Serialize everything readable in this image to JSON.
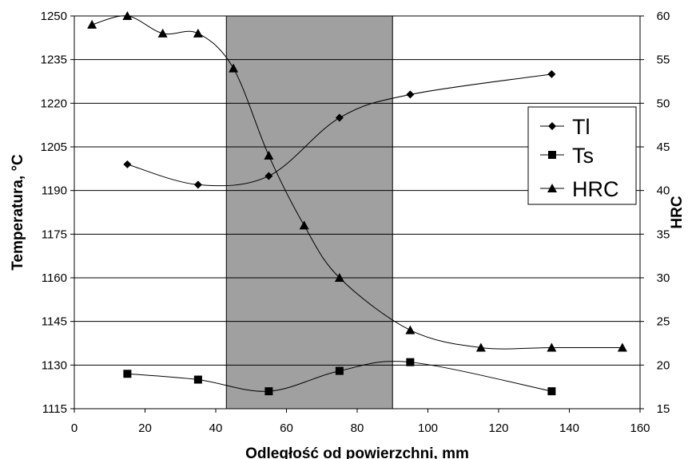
{
  "chart_data": {
    "type": "line",
    "title": "",
    "xlabel": "Odległość od powierzchni, mm",
    "ylabel": "Temperatura, °C",
    "y2label": "HRC",
    "xlim": [
      0,
      160
    ],
    "ylim": [
      1115,
      1250
    ],
    "y2lim": [
      15,
      60
    ],
    "x_ticks": [
      "0",
      "20",
      "40",
      "60",
      "80",
      "100",
      "120",
      "140",
      "160"
    ],
    "y_ticks": [
      "1115",
      "1130",
      "1145",
      "1160",
      "1175",
      "1190",
      "1205",
      "1220",
      "1235",
      "1250"
    ],
    "y2_ticks": [
      "15",
      "20",
      "25",
      "30",
      "35",
      "40",
      "45",
      "50",
      "55",
      "60"
    ],
    "shaded_region": {
      "x_from": 43,
      "x_to": 90,
      "color": "#a0a0a0"
    },
    "grid": "horizontal",
    "legend_position": "right",
    "series": [
      {
        "name": "Tl",
        "marker": "diamond",
        "axis": "left",
        "x": [
          15,
          35,
          55,
          75,
          95,
          135
        ],
        "y": [
          1199,
          1192,
          1195,
          1215,
          1223,
          1230
        ]
      },
      {
        "name": "Ts",
        "marker": "square",
        "axis": "left",
        "x": [
          15,
          35,
          55,
          75,
          95,
          135
        ],
        "y": [
          1127,
          1125,
          1121,
          1128,
          1131,
          1121
        ]
      },
      {
        "name": "HRC",
        "marker": "triangle",
        "axis": "right",
        "x": [
          5,
          15,
          25,
          35,
          45,
          55,
          65,
          75,
          95,
          115,
          135,
          155
        ],
        "y": [
          59,
          60,
          58,
          58,
          54,
          44,
          36,
          30,
          24,
          22,
          22,
          22
        ]
      }
    ]
  }
}
